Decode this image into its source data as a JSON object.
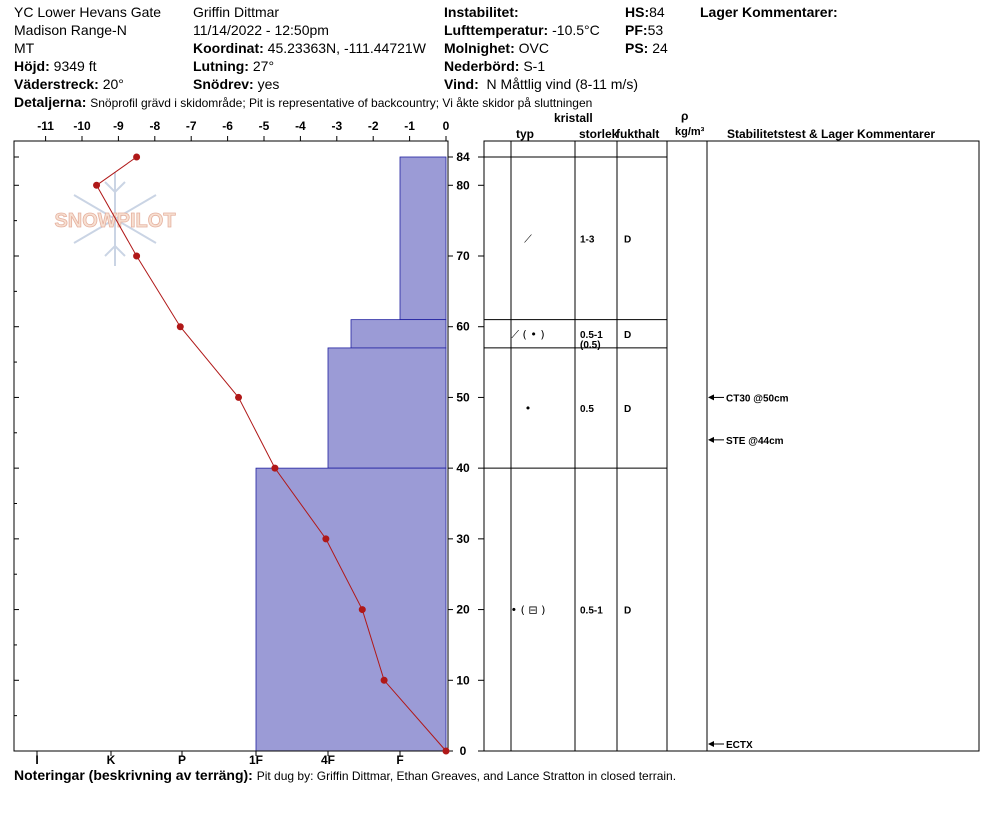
{
  "header": {
    "location": "YC Lower Hevans Gate",
    "range": "Madison Range-N",
    "state": "MT",
    "elevation_label": "Höjd:",
    "elevation_value": "9349 ft",
    "aspect_label": "Väderstreck:",
    "aspect_value": "20°",
    "observer": "Griffin Dittmar",
    "datetime": "11/14/2022 - 12:50pm",
    "coord_label": "Koordinat:",
    "coord_value": "45.23363N, -111.44721W",
    "slope_label": "Lutning:",
    "slope_value": "27°",
    "snowdrift_label": "Snödrev:",
    "snowdrift_value": "yes",
    "instability_label": "Instabilitet:",
    "airtemp_label": "Lufttemperatur:",
    "airtemp_value": "-10.5°C",
    "sky_label": "Molnighet:",
    "sky_value": "OVC",
    "precip_label": "Nederbörd:",
    "precip_value": "S-1",
    "wind_label": "Vind:",
    "wind_value": "N  Måttlig vind (8-11 m/s)",
    "hs_label": "HS:",
    "hs_value": "84",
    "pf_label": "PF:",
    "pf_value": "53",
    "ps_label": "PS:",
    "ps_value": "24",
    "layer_comments_label": "Lager Kommentarer:",
    "details_label": "Detaljerna:",
    "details_text": "Snöprofil grävd i skidområde;  Pit is representative of backcountry;  Vi åkte skidor på sluttningen"
  },
  "notes": {
    "label": "Noteringar (beskrivning av terräng):",
    "text": "Pit dug by: Griffin Dittmar, Ethan Greaves, and Lance Stratton in closed terrain."
  },
  "watermark": "SNOWPILOT",
  "columns": {
    "crystal": "kristall",
    "type": "typ",
    "size": "storlek",
    "moisture": "fukthalt",
    "rho": "ρ",
    "density_unit": "kg/m³",
    "stability": "Stabilitetstest & Lager Kommentarer"
  },
  "colors": {
    "hardness_fill": "#9b9bd6",
    "hardness_edge": "#2020a0",
    "temp_line": "#b01818"
  },
  "chart_data": {
    "type": "line",
    "x_ticks": [
      "-11",
      "-10",
      "-9",
      "-8",
      "-7",
      "-6",
      "-5",
      "-4",
      "-3",
      "-2",
      "-1",
      "0"
    ],
    "hardness_ticks": [
      "I",
      "K",
      "P",
      "1F",
      "4F",
      "F"
    ],
    "y_ticks": [
      "0",
      "10",
      "20",
      "30",
      "40",
      "50",
      "60",
      "70",
      "80",
      "84"
    ],
    "ylim": [
      0,
      84
    ],
    "xlim": [
      -11.5,
      0
    ],
    "temperature_profile": [
      {
        "depth": 84,
        "temp": -8.5
      },
      {
        "depth": 80,
        "temp": -9.6
      },
      {
        "depth": 70,
        "temp": -8.5
      },
      {
        "depth": 60,
        "temp": -7.3
      },
      {
        "depth": 50,
        "temp": -5.7
      },
      {
        "depth": 40,
        "temp": -4.7
      },
      {
        "depth": 30,
        "temp": -3.3
      },
      {
        "depth": 20,
        "temp": -2.3
      },
      {
        "depth": 10,
        "temp": -1.7
      },
      {
        "depth": 0,
        "temp": 0
      }
    ],
    "hardness_layers": [
      {
        "top": 84,
        "bottom": 61,
        "hardness": "F"
      },
      {
        "top": 61,
        "bottom": 57,
        "hardness": "4F+"
      },
      {
        "top": 57,
        "bottom": 40,
        "hardness": "4F"
      },
      {
        "top": 40,
        "bottom": 0,
        "hardness": "1F"
      }
    ],
    "layer_boundaries": [
      84,
      61,
      57,
      40,
      0
    ],
    "layers": [
      {
        "at": 72.5,
        "type": "⟋",
        "size": "1-3",
        "size2": "",
        "moisture": "D"
      },
      {
        "at": 59,
        "type": "⟋ ( • )",
        "size": "0.5-1",
        "size2": "(0.5)",
        "moisture": "D"
      },
      {
        "at": 48.5,
        "type": "•",
        "size": "0.5",
        "size2": "",
        "moisture": "D"
      },
      {
        "at": 20,
        "type": "• ( ⊟ )",
        "size": "0.5-1",
        "size2": "",
        "moisture": "D"
      }
    ],
    "stability_tests": [
      {
        "at": 50,
        "label": "CT30 @50cm"
      },
      {
        "at": 44,
        "label": "STE @44cm"
      },
      {
        "at": 0,
        "label": "ECTX"
      }
    ]
  }
}
